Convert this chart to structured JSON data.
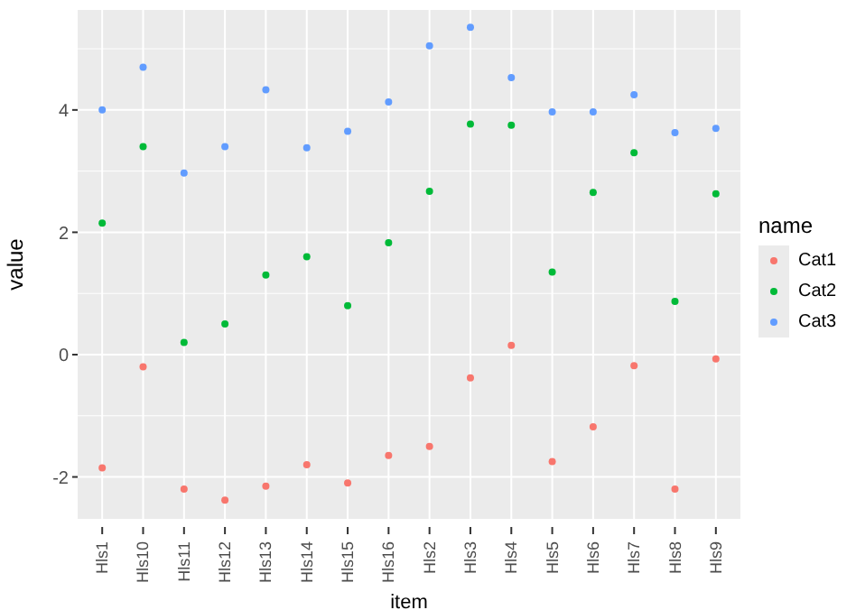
{
  "chart_data": {
    "type": "scatter",
    "xlabel": "item",
    "ylabel": "value",
    "legend_title": "name",
    "legend": "right",
    "grid": true,
    "marker": "circle",
    "categories": [
      "Hls1",
      "Hls10",
      "Hls11",
      "Hls12",
      "Hls13",
      "Hls14",
      "Hls15",
      "Hls16",
      "Hls2",
      "Hls3",
      "Hls4",
      "Hls5",
      "Hls6",
      "Hls7",
      "Hls8",
      "Hls9"
    ],
    "ylim": [
      -2.7,
      5.65
    ],
    "yticks": [
      -2,
      0,
      2,
      4
    ],
    "series": [
      {
        "name": "Cat1",
        "color": "#f8766d",
        "values": [
          -1.85,
          -0.2,
          -2.2,
          -2.38,
          -2.15,
          -1.8,
          -2.1,
          -1.65,
          -1.5,
          -0.38,
          0.15,
          -1.75,
          -1.18,
          -0.18,
          -2.2,
          -0.07
        ]
      },
      {
        "name": "Cat2",
        "color": "#00ba38",
        "values": [
          2.15,
          3.4,
          0.2,
          0.5,
          1.3,
          1.6,
          0.8,
          1.83,
          2.67,
          3.77,
          3.75,
          1.35,
          2.65,
          3.3,
          0.87,
          2.63
        ]
      },
      {
        "name": "Cat3",
        "color": "#619cff",
        "values": [
          4.0,
          4.7,
          2.97,
          3.4,
          4.33,
          3.38,
          3.65,
          4.13,
          5.05,
          5.35,
          4.53,
          3.97,
          3.97,
          4.25,
          3.63,
          3.7
        ]
      }
    ]
  }
}
